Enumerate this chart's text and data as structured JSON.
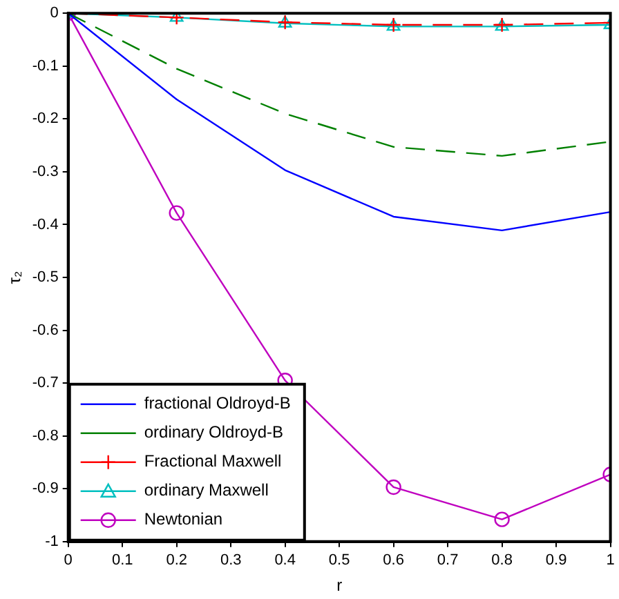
{
  "chart_data": {
    "type": "line",
    "xlabel": "r",
    "ylabel": "τ₂",
    "x": [
      0,
      0.2,
      0.4,
      0.6,
      0.8,
      1
    ],
    "series": [
      {
        "name": "fractional Oldroyd-B",
        "color": "#0000ff",
        "values": [
          0,
          -0.163,
          -0.297,
          -0.385,
          -0.411,
          -0.376
        ],
        "marker": "none",
        "line_style": "solid"
      },
      {
        "name": "ordinary Oldroyd-B",
        "color": "#008000",
        "values": [
          0,
          -0.105,
          -0.19,
          -0.253,
          -0.27,
          -0.243
        ],
        "marker": "none",
        "line_style": "dashed"
      },
      {
        "name": "Fractional Maxwell",
        "color": "#ff0000",
        "values": [
          0,
          -0.008,
          -0.017,
          -0.022,
          -0.022,
          -0.018
        ],
        "marker": "cross",
        "line_style": "dashed"
      },
      {
        "name": "ordinary Maxwell",
        "color": "#00bfbf",
        "values": [
          0,
          -0.008,
          -0.019,
          -0.025,
          -0.025,
          -0.022
        ],
        "marker": "triangle",
        "line_style": "solid"
      },
      {
        "name": "Newtonian",
        "color": "#bf00bf",
        "values": [
          0,
          -0.378,
          -0.695,
          -0.897,
          -0.958,
          -0.873
        ],
        "marker": "circle",
        "line_style": "solid"
      }
    ],
    "xlim": [
      0,
      1
    ],
    "xticks": [
      0,
      0.1,
      0.2,
      0.3,
      0.4,
      0.5,
      0.6,
      0.7,
      0.8,
      0.9,
      1
    ],
    "ylim": [
      -1,
      0
    ],
    "yticks": [
      -1,
      -0.9,
      -0.8,
      -0.7,
      -0.6,
      -0.5,
      -0.4,
      -0.3,
      -0.2,
      -0.1,
      0
    ],
    "grid": false,
    "legend": "bottom left"
  }
}
